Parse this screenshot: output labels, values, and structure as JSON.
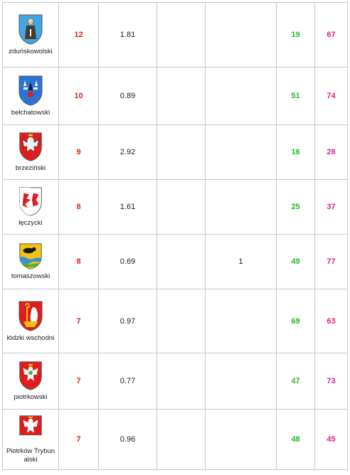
{
  "rows": [
    {
      "name": "zduńskowolski",
      "rank": "12",
      "value": "1.81",
      "extra": "",
      "green": "19",
      "pink": "67",
      "crest": {
        "bg": "#3fa6e8",
        "icon": "saint-figure-crest-icon"
      }
    },
    {
      "name": "bełchatowski",
      "rank": "10",
      "value": "0.89",
      "extra": "",
      "green": "51",
      "pink": "74",
      "crest": {
        "bg": "#2a74d6",
        "icon": "fleur-de-lis-crest-icon"
      }
    },
    {
      "name": "brzeziński",
      "rank": "9",
      "value": "2.92",
      "extra": "",
      "green": "16",
      "pink": "28",
      "crest": {
        "bg": "#e01c1c",
        "icon": "eagle-crest-icon"
      }
    },
    {
      "name": "łęczycki",
      "rank": "8",
      "value": "1.61",
      "extra": "",
      "green": "25",
      "pink": "37",
      "crest": {
        "bg": "#ffffff",
        "icon": "half-eagle-crest-icon"
      }
    },
    {
      "name": "tomaszowski",
      "rank": "8",
      "value": "0.69",
      "extra": "1",
      "green": "49",
      "pink": "77",
      "crest": {
        "bg": "#f2c40f",
        "icon": "bear-crest-icon"
      }
    },
    {
      "name": "łódzki wschodni",
      "rank": "7",
      "value": "0.97",
      "extra": "",
      "green": "69",
      "pink": "63",
      "crest": {
        "bg": "#e01c1c",
        "icon": "crozier-crest-icon"
      }
    },
    {
      "name": "piotrkowski",
      "rank": "7",
      "value": "0.77",
      "extra": "",
      "green": "47",
      "pink": "73",
      "crest": {
        "bg": "#e01c1c",
        "icon": "white-eagle-crest-icon"
      }
    },
    {
      "name": "Piotrków Trybunalski",
      "rank": "7",
      "value": "0.96",
      "extra": "",
      "green": "48",
      "pink": "45",
      "crest": {
        "bg": "#e01c1c",
        "icon": "white-eagle-crest-icon"
      }
    }
  ]
}
